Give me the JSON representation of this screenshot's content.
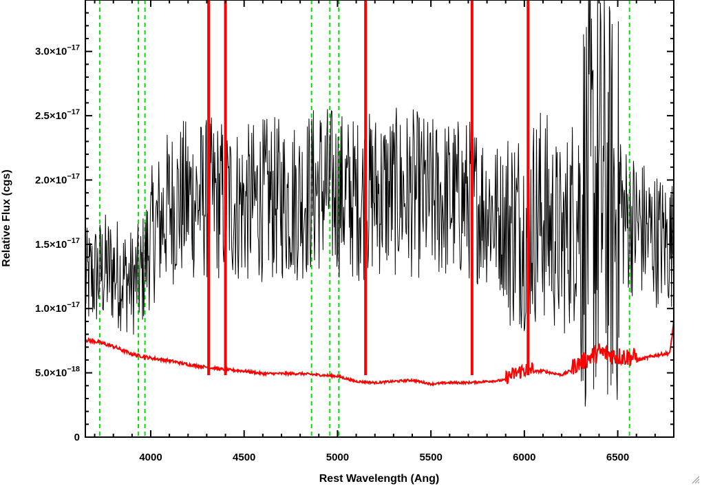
{
  "chart_data": {
    "type": "line",
    "title": "",
    "xlabel": "Rest Wavelength (Ang)",
    "ylabel": "Relative Flux (cgs)",
    "xlim": [
      3650,
      6800
    ],
    "ylim": [
      0,
      3.4e-17
    ],
    "x_ticks": [
      {
        "value": 4000,
        "label": "4000"
      },
      {
        "value": 4500,
        "label": "4500"
      },
      {
        "value": 5000,
        "label": "5000"
      },
      {
        "value": 5500,
        "label": "5500"
      },
      {
        "value": 6000,
        "label": "6000"
      },
      {
        "value": 6500,
        "label": "6500"
      }
    ],
    "y_ticks": [
      {
        "value": 0,
        "mantissa": "0",
        "exponent": ""
      },
      {
        "value": 5e-18,
        "mantissa": "5.0×10",
        "exponent": "−18"
      },
      {
        "value": 1e-17,
        "mantissa": "1.0×10",
        "exponent": "−17"
      },
      {
        "value": 1.5e-17,
        "mantissa": "1.5×10",
        "exponent": "−17"
      },
      {
        "value": 2e-17,
        "mantissa": "2.0×10",
        "exponent": "−17"
      },
      {
        "value": 2.5e-17,
        "mantissa": "2.5×10",
        "exponent": "−17"
      },
      {
        "value": 3e-17,
        "mantissa": "3.0×10",
        "exponent": "−17"
      }
    ],
    "series": [
      {
        "color": "#000000",
        "style": "noisy-spectrum",
        "x": [
          3650,
          3700,
          3750,
          3800,
          3900,
          3950,
          4000,
          4100,
          4200,
          4300,
          4400,
          4500,
          4600,
          4700,
          4800,
          4900,
          5000,
          5100,
          5200,
          5300,
          5400,
          5500,
          5600,
          5700,
          5800,
          5900,
          6000,
          6100,
          6200,
          6300,
          6400,
          6500,
          6600,
          6700,
          6800
        ],
        "y": [
          1.2e-17,
          1.25e-17,
          1.3e-17,
          1.3e-17,
          1.2e-17,
          1.25e-17,
          1.55e-17,
          1.8e-17,
          1.85e-17,
          1.85e-17,
          1.85e-17,
          1.8e-17,
          1.85e-17,
          1.85e-17,
          1.85e-17,
          1.95e-17,
          1.9e-17,
          1.85e-17,
          1.9e-17,
          1.9e-17,
          1.9e-17,
          1.85e-17,
          1.85e-17,
          1.85e-17,
          1.8e-17,
          1.65e-17,
          1.65e-17,
          1.75e-17,
          1.5e-17,
          1.85e-17,
          1.9e-17,
          1.75e-17,
          1.65e-17,
          1.55e-17,
          1.5e-17
        ]
      },
      {
        "color": "#ff0000",
        "style": "error-spectrum",
        "x": [
          3650,
          3700,
          3750,
          3800,
          3850,
          3900,
          4000,
          4100,
          4200,
          4300,
          4400,
          4500,
          4600,
          4700,
          4800,
          4900,
          5000,
          5100,
          5200,
          5300,
          5400,
          5500,
          5600,
          5700,
          5800,
          5900,
          6000,
          6100,
          6200,
          6300,
          6400,
          6500,
          6600,
          6700,
          6780,
          6800
        ],
        "y": [
          7.5e-18,
          7.4e-18,
          7.2e-18,
          7e-18,
          6.7e-18,
          6.4e-18,
          6.1e-18,
          5.9e-18,
          5.6e-18,
          5.4e-18,
          5.2e-18,
          5.1e-18,
          4.9e-18,
          4.9e-18,
          4.9e-18,
          4.8e-18,
          4.7e-18,
          4.3e-18,
          4.2e-18,
          4.3e-18,
          4.4e-18,
          4.1e-18,
          4.2e-18,
          4.2e-18,
          4.3e-18,
          4.4e-18,
          5e-18,
          5.1e-18,
          4.8e-18,
          5.5e-18,
          6.3e-18,
          6e-18,
          5.9e-18,
          6.3e-18,
          6.5e-18,
          9e-18
        ]
      }
    ],
    "red_vertical_lines": [
      4310,
      4400,
      5150,
      5720,
      6020
    ],
    "green_dashed_lines": [
      3727,
      3934,
      3969,
      4861,
      4959,
      5007,
      6563
    ],
    "colors": {
      "spectrum": "#000000",
      "error": "#ff0000",
      "marker_lines": "#ff0000",
      "guide_lines": "#00e000"
    }
  }
}
